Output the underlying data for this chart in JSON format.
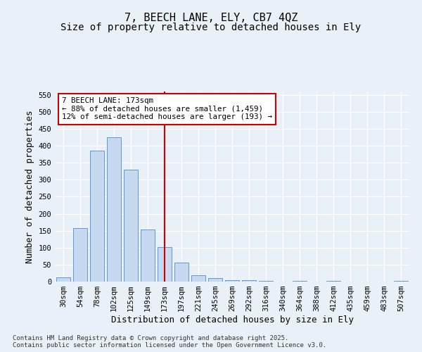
{
  "title_line1": "7, BEECH LANE, ELY, CB7 4QZ",
  "title_line2": "Size of property relative to detached houses in Ely",
  "xlabel": "Distribution of detached houses by size in Ely",
  "ylabel": "Number of detached properties",
  "categories": [
    "30sqm",
    "54sqm",
    "78sqm",
    "102sqm",
    "125sqm",
    "149sqm",
    "173sqm",
    "197sqm",
    "221sqm",
    "245sqm",
    "269sqm",
    "292sqm",
    "316sqm",
    "340sqm",
    "364sqm",
    "388sqm",
    "412sqm",
    "435sqm",
    "459sqm",
    "483sqm",
    "507sqm"
  ],
  "values": [
    13,
    157,
    385,
    425,
    330,
    153,
    102,
    56,
    18,
    10,
    5,
    5,
    3,
    0,
    3,
    0,
    2,
    0,
    0,
    0,
    3
  ],
  "bar_color": "#c6d9f0",
  "bar_edge_color": "#5b9bd5",
  "vline_x": 6,
  "vline_color": "#cc0000",
  "annotation_line1": "7 BEECH LANE: 173sqm",
  "annotation_line2": "← 88% of detached houses are smaller (1,459)",
  "annotation_line3": "12% of semi-detached houses are larger (193) →",
  "annotation_box_color": "#cc0000",
  "annotation_box_bg": "#ffffff",
  "ylim": [
    0,
    560
  ],
  "yticks": [
    0,
    50,
    100,
    150,
    200,
    250,
    300,
    350,
    400,
    450,
    500,
    550
  ],
  "bg_color": "#eaf0f8",
  "plot_bg_color": "#eaf0f8",
  "footnote": "Contains HM Land Registry data © Crown copyright and database right 2025.\nContains public sector information licensed under the Open Government Licence v3.0.",
  "title_fontsize": 11,
  "subtitle_fontsize": 10,
  "axis_label_fontsize": 9,
  "tick_fontsize": 7.5,
  "footnote_fontsize": 6.5
}
